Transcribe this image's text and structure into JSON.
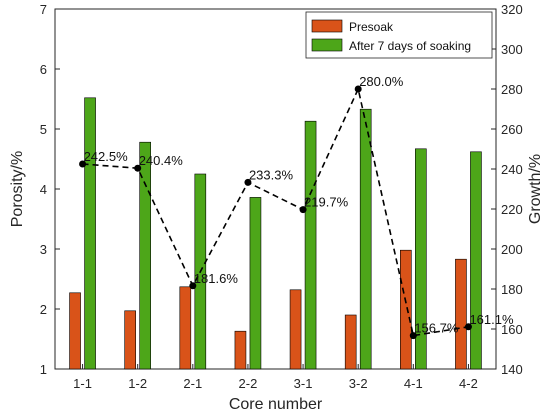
{
  "chart_data": {
    "type": "bar",
    "categories": [
      "1-1",
      "1-2",
      "2-1",
      "2-2",
      "3-1",
      "3-2",
      "4-1",
      "4-2"
    ],
    "series": [
      {
        "name": "Presoak",
        "axis": "left",
        "color": "#d95319",
        "values": [
          2.27,
          1.97,
          2.37,
          1.63,
          2.32,
          1.9,
          2.98,
          2.83
        ]
      },
      {
        "name": "After 7 days of soaking",
        "axis": "left",
        "color": "#4da619",
        "values": [
          5.52,
          4.78,
          4.25,
          3.86,
          5.13,
          5.33,
          4.67,
          4.62
        ]
      }
    ],
    "growth": {
      "axis": "right",
      "line_style": "dashed",
      "marker": "circle",
      "color": "#000000",
      "values": [
        242.5,
        240.4,
        181.6,
        233.3,
        219.7,
        280.0,
        156.7,
        161.1
      ],
      "labels": [
        "242.5%",
        "240.4%",
        "181.6%",
        "233.3%",
        "219.7%",
        "280.0%",
        "156.7%",
        "161.1%"
      ]
    },
    "xlabel": "Core number",
    "ylabel_left": "Porosity/%",
    "ylabel_right": "Growth/%",
    "ylim_left": [
      1,
      7
    ],
    "ylim_right": [
      140,
      320
    ],
    "yticks_left": [
      "1",
      "2",
      "3",
      "4",
      "5",
      "6",
      "7"
    ],
    "yticks_right": [
      "140",
      "160",
      "180",
      "200",
      "220",
      "240",
      "260",
      "280",
      "300",
      "320"
    ],
    "grid": false,
    "legend_position": "top-right"
  }
}
